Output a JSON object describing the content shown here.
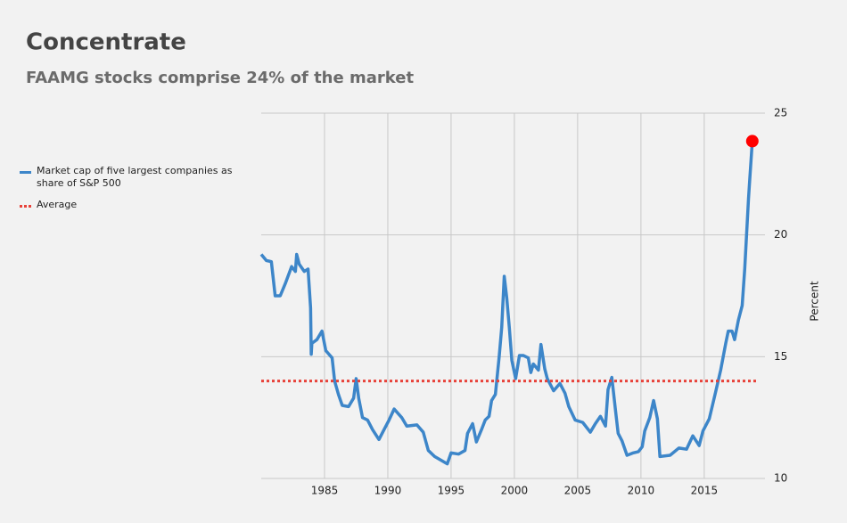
{
  "chart_data": {
    "type": "line",
    "title": "Concentrate",
    "subtitle": "FAAMG stocks comprise 24% of the market",
    "y_label": "Percent",
    "x": [
      1980,
      1980.4,
      1980.8,
      1981.1,
      1981.5,
      1981.9,
      1982.4,
      1982.7,
      1982.8,
      1983.0,
      1983.4,
      1983.7,
      1983.9,
      1983.95,
      1984.0,
      1984.4,
      1984.8,
      1985.1,
      1985.6,
      1985.8,
      1986.1,
      1986.4,
      1986.9,
      1987.3,
      1987.5,
      1987.7,
      1988.0,
      1988.4,
      1988.8,
      1989.3,
      1989.7,
      1990.1,
      1990.5,
      1991.1,
      1991.5,
      1992.3,
      1992.8,
      1993.2,
      1993.7,
      1994.2,
      1994.7,
      1995.0,
      1995.6,
      1996.1,
      1996.3,
      1996.7,
      1997.0,
      1997.4,
      1997.7,
      1998.0,
      1998.2,
      1998.5,
      1998.8,
      1999.0,
      1999.2,
      1999.4,
      1999.6,
      1999.8,
      2000.1,
      2000.4,
      2000.7,
      2001.1,
      2001.3,
      2001.5,
      2001.9,
      2002.1,
      2002.4,
      2002.6,
      2003.1,
      2003.6,
      2004.0,
      2004.3,
      2004.8,
      2005.4,
      2006.0,
      2006.4,
      2006.8,
      2007.2,
      2007.4,
      2007.7,
      2008.0,
      2008.2,
      2008.5,
      2008.9,
      2009.4,
      2009.8,
      2010.1,
      2010.3,
      2010.7,
      2011.0,
      2011.3,
      2011.5,
      2012.3,
      2013.0,
      2013.6,
      2014.1,
      2014.6,
      2014.9,
      2015.4,
      2015.9,
      2016.3,
      2016.7,
      2016.9,
      2017.2,
      2017.4,
      2017.7,
      2018.0,
      2018.2,
      2018.5,
      2018.6,
      2018.8
    ],
    "series": [
      {
        "name": "Market cap of five largest companies as share of S&P 500",
        "color": "#3d86c9",
        "highlight_color": "#ff0000",
        "values": [
          19.2,
          18.95,
          18.9,
          17.5,
          17.5,
          18.0,
          18.7,
          18.5,
          19.2,
          18.8,
          18.5,
          18.6,
          17.0,
          15.1,
          15.55,
          15.7,
          16.05,
          15.25,
          14.95,
          14.0,
          13.45,
          13.0,
          12.95,
          13.3,
          14.1,
          13.3,
          12.5,
          12.4,
          12.0,
          11.6,
          12.0,
          12.4,
          12.85,
          12.5,
          12.15,
          12.2,
          11.9,
          11.15,
          10.9,
          10.75,
          10.6,
          11.05,
          11.0,
          11.15,
          11.85,
          12.25,
          11.5,
          12.0,
          12.4,
          12.55,
          13.2,
          13.45,
          15.0,
          16.2,
          18.3,
          17.4,
          16.2,
          14.85,
          14.1,
          15.05,
          15.05,
          14.95,
          14.35,
          14.7,
          14.45,
          15.5,
          14.5,
          14.1,
          13.6,
          13.9,
          13.5,
          12.95,
          12.4,
          12.3,
          11.9,
          12.25,
          12.55,
          12.15,
          13.65,
          14.15,
          12.75,
          11.85,
          11.55,
          10.95,
          11.05,
          11.1,
          11.3,
          11.95,
          12.5,
          13.2,
          12.45,
          10.9,
          10.95,
          11.25,
          11.2,
          11.75,
          11.35,
          11.95,
          12.45,
          13.55,
          14.45,
          15.55,
          16.05,
          16.05,
          15.7,
          16.5,
          17.1,
          18.6,
          21.5,
          22.3,
          23.85
        ]
      },
      {
        "name": "Average",
        "color": "#e8423a",
        "style": "dotted",
        "x": [
          1980,
          2019.2
        ],
        "values": [
          14,
          14
        ]
      }
    ],
    "xlim": [
      1980,
      2019.8
    ],
    "xticks": [
      1985,
      1990,
      1995,
      2000,
      2005,
      2010,
      2015
    ],
    "ylim": [
      10,
      25
    ],
    "yticks": [
      10,
      15,
      20,
      25
    ],
    "grid": true,
    "legend": "left"
  }
}
